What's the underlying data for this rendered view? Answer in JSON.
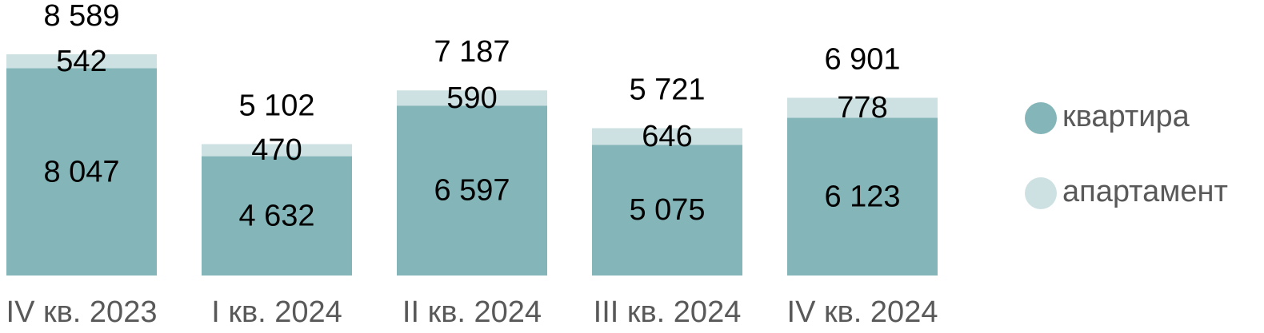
{
  "chart_data": {
    "type": "stacked-bar",
    "categories": [
      "IV кв. 2023",
      "I кв. 2024",
      "II кв. 2024",
      "III кв. 2024",
      "IV кв. 2024"
    ],
    "series": [
      {
        "name": "квартира",
        "color": "#84b5b8",
        "values": [
          8047,
          4632,
          6597,
          5075,
          6123
        ],
        "value_labels": [
          "8 047",
          "4 632",
          "6 597",
          "5 075",
          "6 123"
        ]
      },
      {
        "name": "апартамент",
        "color": "#cde1e3",
        "values": [
          542,
          470,
          590,
          646,
          778
        ],
        "value_labels": [
          "542",
          "470",
          "590",
          "646",
          "778"
        ]
      }
    ],
    "totals": {
      "values": [
        8589,
        5102,
        7187,
        5721,
        6901
      ],
      "value_labels": [
        "8 589",
        "5 102",
        "7 187",
        "5 721",
        "6 901"
      ]
    }
  }
}
